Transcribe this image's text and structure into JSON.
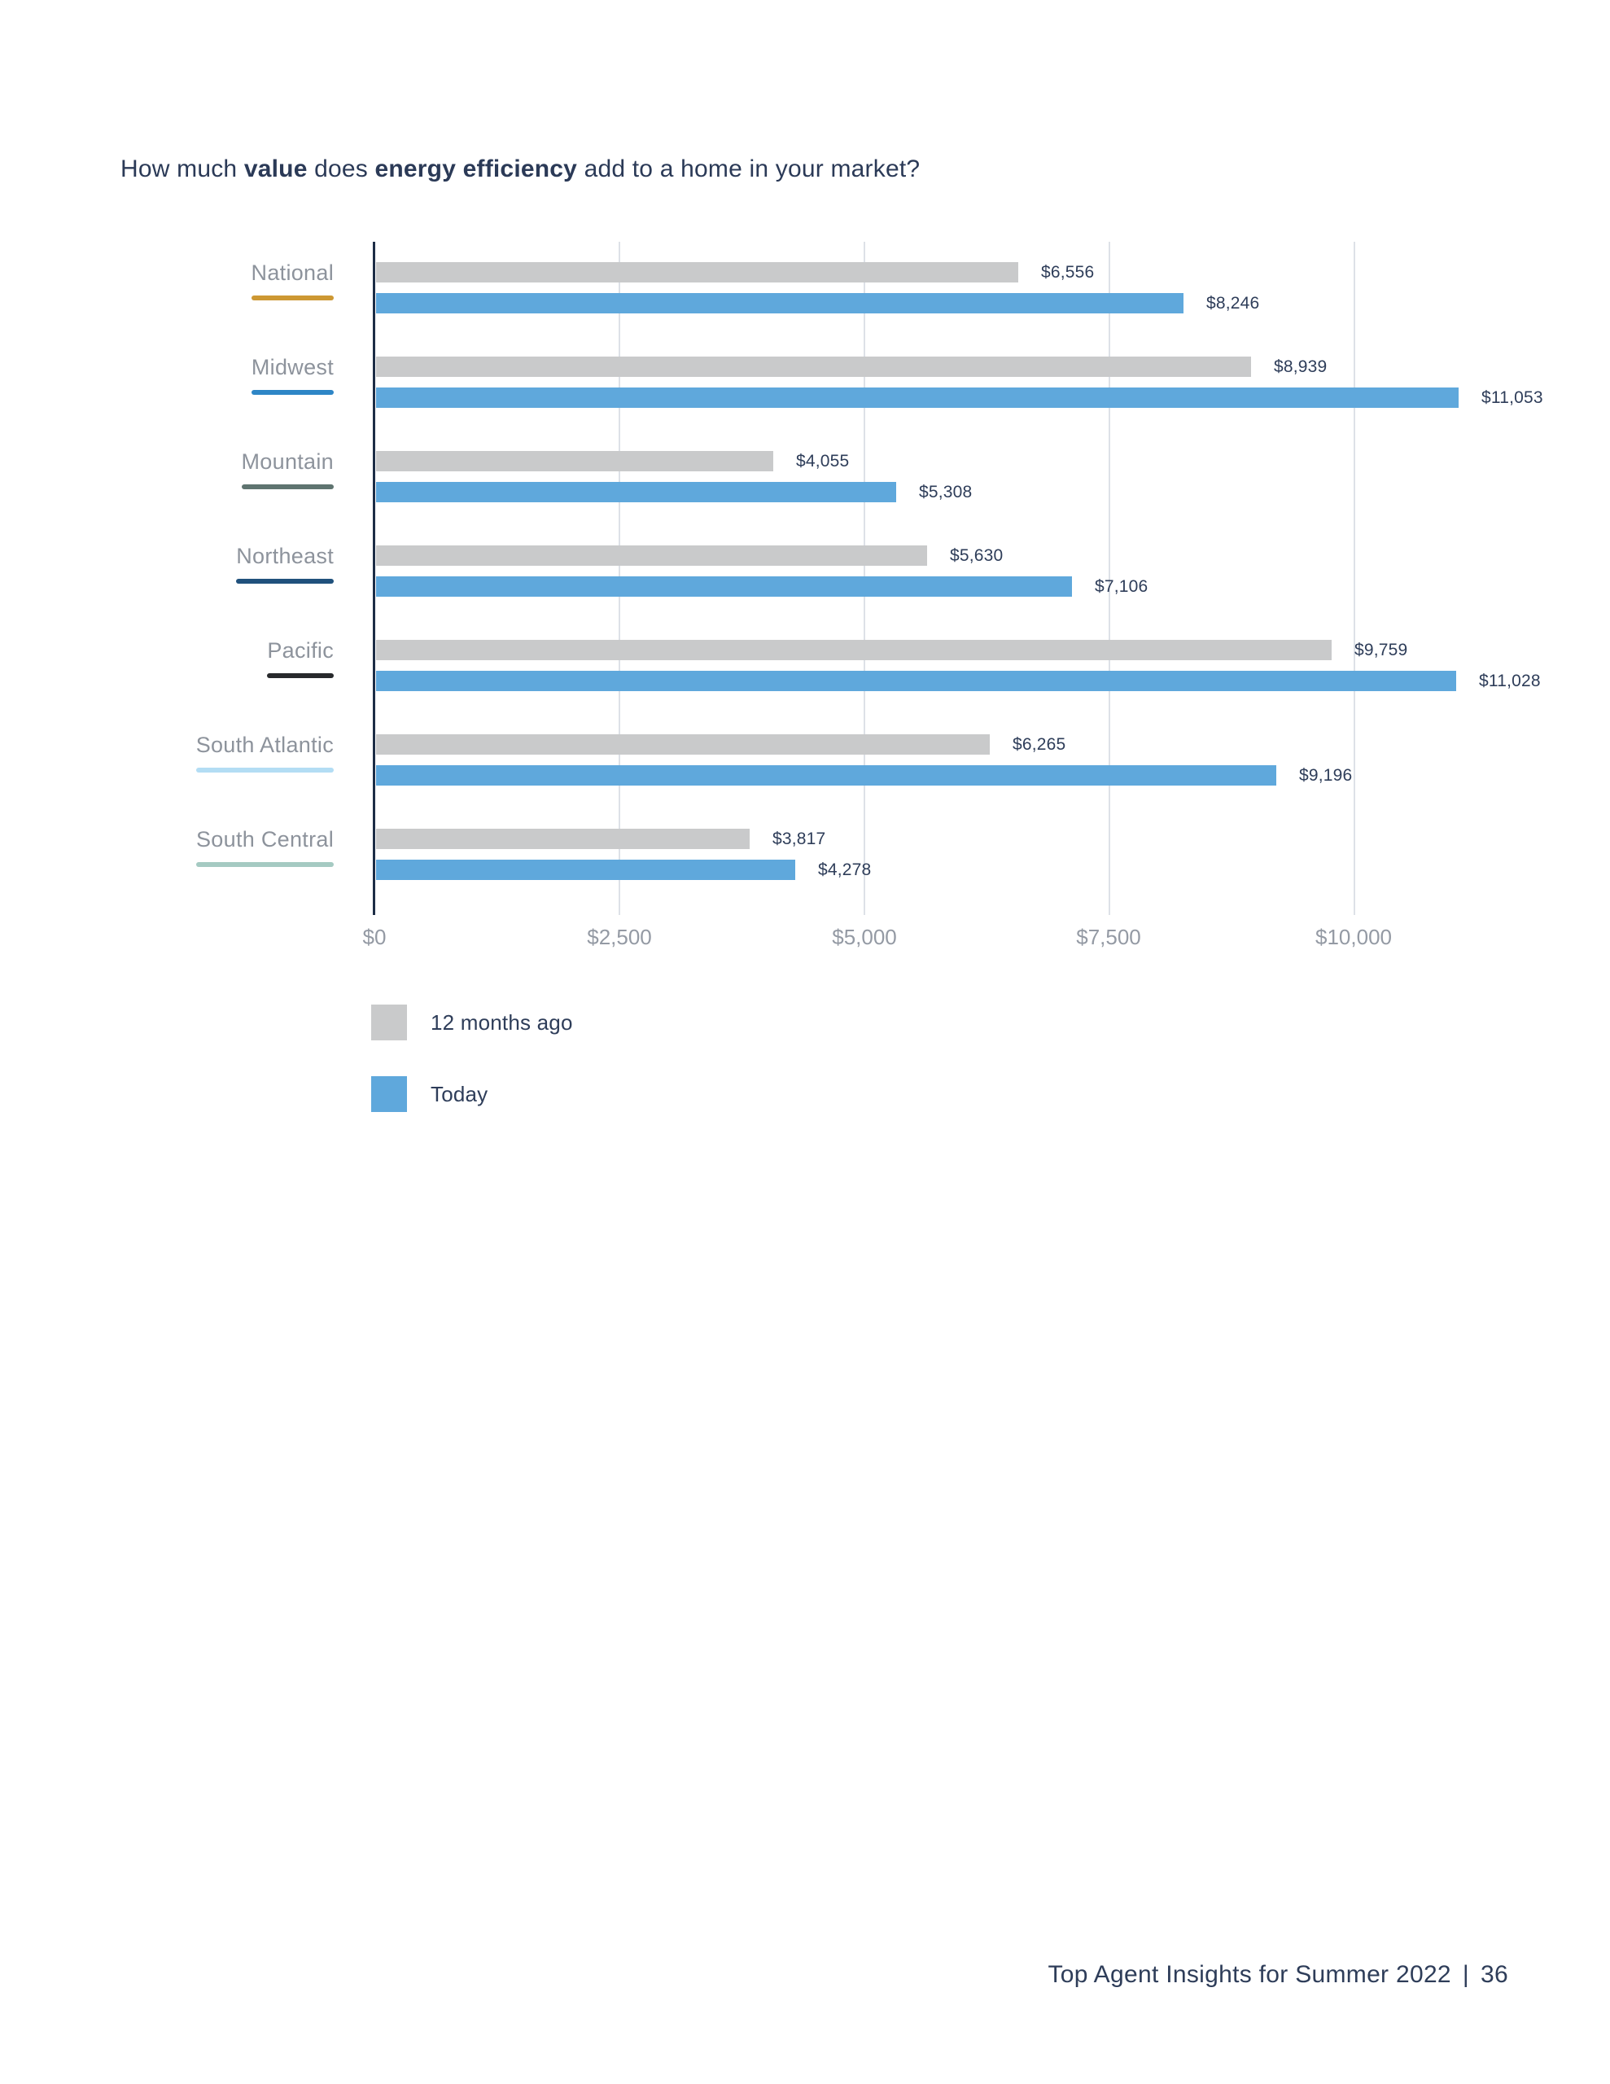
{
  "header": {
    "title_parts": [
      "How much ",
      "value",
      " does ",
      "energy efficiency",
      " add to a home in your market?"
    ]
  },
  "chart_data": {
    "type": "bar",
    "orientation": "horizontal",
    "title": "How much value does energy efficiency add to a home in your market?",
    "categories": [
      "National",
      "Midwest",
      "Mountain",
      "Northeast",
      "Pacific",
      "South Atlantic",
      "South Central"
    ],
    "category_underline_colors": [
      "#cd9833",
      "#2e86c6",
      "#5f7470",
      "#20517c",
      "#27292c",
      "#b3ddf4",
      "#a5cac2"
    ],
    "series": [
      {
        "name": "12 months ago",
        "color": "#c9cacb",
        "values": [
          6556,
          8939,
          4055,
          5630,
          9759,
          6265,
          3817
        ],
        "labels": [
          "$6,556",
          "$8,939",
          "$4,055",
          "$5,630",
          "$9,759",
          "$6,265",
          "$3,817"
        ]
      },
      {
        "name": "Today",
        "color": "#5fa8dc",
        "values": [
          8246,
          11053,
          5308,
          7106,
          11028,
          9196,
          4278
        ],
        "labels": [
          "$8,246",
          "$11,053",
          "$5,308",
          "$7,106",
          "$11,028",
          "$9,196",
          "$4,278"
        ]
      }
    ],
    "x_ticks": [
      {
        "label": "$0",
        "value": 0
      },
      {
        "label": "$2,500",
        "value": 2500
      },
      {
        "label": "$5,000",
        "value": 5000
      },
      {
        "label": "$7,500",
        "value": 7500
      },
      {
        "label": "$10,000",
        "value": 10000
      }
    ],
    "xlim": [
      0,
      10000
    ],
    "grid": "vertical",
    "legend_position": "bottom-left"
  },
  "footer": {
    "report_title": "Top Agent Insights for Summer 2022",
    "separator": "|",
    "page_number": "36"
  },
  "colors": {
    "title_text": "#2b3a57",
    "value_text": "#2e3d59",
    "category_text": "#8d939c",
    "tick_text": "#949aa4",
    "axis_line": "#1d2d46",
    "gridline": "#dde1e7"
  }
}
